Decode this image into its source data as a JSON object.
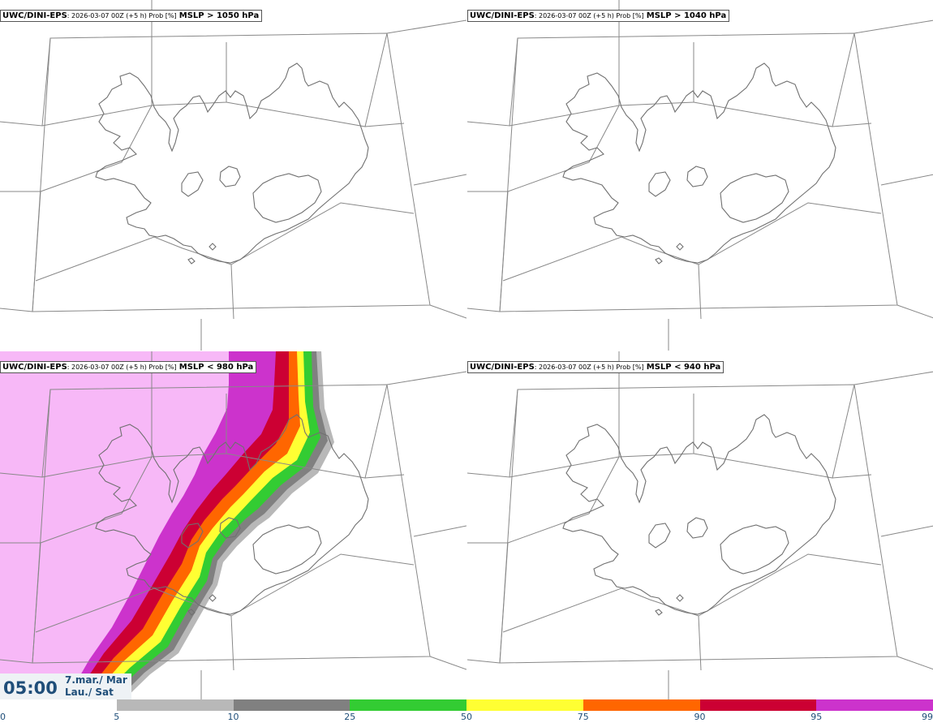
{
  "panels": [
    {
      "model": "UWC/DINI-EPS",
      "meta": ": 2026-03-07 00Z (+5 h) Prob [%]",
      "product": "MSLP > 1050 hPa"
    },
    {
      "model": "UWC/DINI-EPS",
      "meta": ": 2026-03-07 00Z (+5 h) Prob [%]",
      "product": "MSLP > 1040 hPa"
    },
    {
      "model": "UWC/DINI-EPS",
      "meta": ": 2026-03-07 00Z (+5 h) Prob [%]",
      "product": "MSLP < 980 hPa"
    },
    {
      "model": "UWC/DINI-EPS",
      "meta": ": 2026-03-07 00Z (+5 h) Prob [%]",
      "product": "MSLP < 940 hPa"
    }
  ],
  "valid_time": {
    "time": "05:00",
    "date_line1": "7.mar./ Mar",
    "date_line2": "Lau./ Sat"
  },
  "colorbar": {
    "ticks": [
      "0",
      "5",
      "10",
      "25",
      "50",
      "75",
      "90",
      "95",
      "99"
    ],
    "colors": [
      "#ffffff",
      "#b8b8b8",
      "#808080",
      "#33cc33",
      "#ffff33",
      "#ff6600",
      "#cc0033",
      "#cc33cc",
      "#f7b8f7"
    ]
  }
}
